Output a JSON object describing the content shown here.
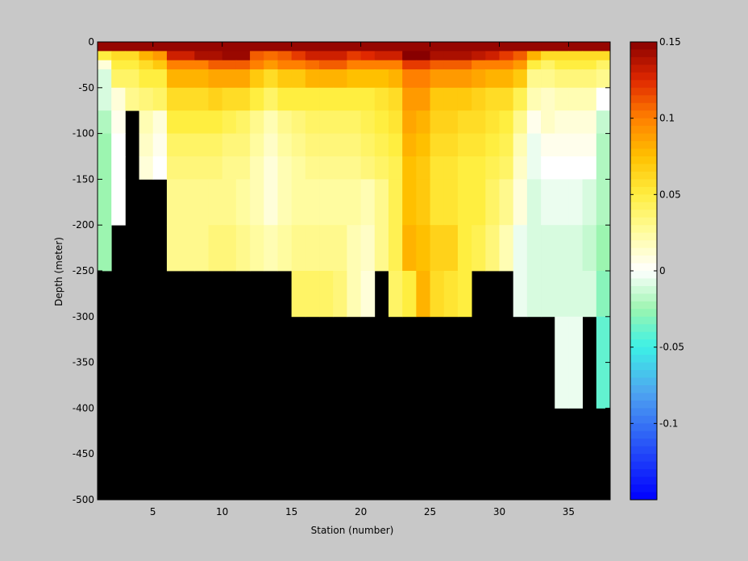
{
  "chart_data": [
    {
      "type": "heatmap",
      "title": "",
      "xlabel": "Station (number)",
      "ylabel": "Depth (meter)",
      "xlim": [
        1,
        38
      ],
      "ylim": [
        -500,
        0
      ],
      "xticks": [
        5,
        10,
        15,
        20,
        25,
        30,
        35
      ],
      "yticks": [
        0,
        -50,
        -100,
        -150,
        -200,
        -250,
        -300,
        -350,
        -400,
        -450,
        -500
      ],
      "background_color": "#000000",
      "y_direction": "normal",
      "stations": [
        1,
        2,
        3,
        4,
        5,
        6,
        7,
        8,
        9,
        10,
        11,
        12,
        13,
        14,
        15,
        16,
        17,
        18,
        19,
        20,
        21,
        22,
        23,
        24,
        25,
        26,
        27,
        28,
        29,
        30,
        31,
        32,
        33,
        34,
        35,
        36,
        37,
        38
      ],
      "depth_rows": [
        0,
        -10,
        -20,
        -30,
        -50,
        -75,
        -100,
        -125,
        -150,
        -200,
        -250,
        -300,
        -400
      ],
      "values": [
        [
          0.146,
          0.146,
          0.146,
          0.146,
          0.146,
          0.146,
          0.146,
          0.146,
          0.146,
          0.146,
          0.146,
          0.146,
          0.146,
          0.146,
          0.146,
          0.146,
          0.146,
          0.146,
          0.146,
          0.146,
          0.146,
          0.146,
          0.146,
          0.146,
          0.146,
          0.146,
          0.146,
          0.146,
          0.146,
          0.146,
          0.146,
          0.146,
          0.146,
          0.146,
          0.146,
          0.146,
          0.146
        ],
        [
          0.05,
          0.06,
          0.06,
          0.08,
          0.09,
          0.13,
          0.13,
          0.14,
          0.14,
          0.145,
          0.145,
          0.11,
          0.105,
          0.11,
          0.12,
          0.13,
          0.13,
          0.13,
          0.12,
          0.125,
          0.13,
          0.13,
          0.15,
          0.15,
          0.14,
          0.14,
          0.14,
          0.135,
          0.13,
          0.12,
          0.11,
          0.08,
          0.06,
          0.06,
          0.06,
          0.06,
          0.06
        ],
        [
          0.01,
          0.05,
          0.05,
          0.06,
          0.07,
          0.1,
          0.1,
          0.1,
          0.11,
          0.11,
          0.11,
          0.1,
          0.09,
          0.1,
          0.1,
          0.105,
          0.11,
          0.11,
          0.1,
          0.1,
          0.1,
          0.1,
          0.12,
          0.12,
          0.11,
          0.11,
          0.11,
          0.1,
          0.1,
          0.1,
          0.09,
          0.05,
          0.04,
          0.05,
          0.05,
          0.05,
          0.04
        ],
        [
          -0.01,
          0.04,
          0.04,
          0.05,
          0.05,
          0.08,
          0.08,
          0.08,
          0.085,
          0.085,
          0.085,
          0.07,
          0.06,
          0.07,
          0.07,
          0.08,
          0.08,
          0.08,
          0.075,
          0.075,
          0.075,
          0.08,
          0.1,
          0.1,
          0.09,
          0.09,
          0.09,
          0.085,
          0.08,
          0.08,
          0.07,
          0.03,
          0.03,
          0.035,
          0.035,
          0.035,
          0.03
        ],
        [
          -0.01,
          0.01,
          0.03,
          0.035,
          0.04,
          0.06,
          0.06,
          0.06,
          0.065,
          0.06,
          0.06,
          0.05,
          0.04,
          0.05,
          0.05,
          0.05,
          0.05,
          0.05,
          0.05,
          0.05,
          0.055,
          0.06,
          0.09,
          0.09,
          0.07,
          0.07,
          0.07,
          0.065,
          0.06,
          0.06,
          0.045,
          0.02,
          0.015,
          0.02,
          0.02,
          0.02,
          0.0
        ],
        [
          -0.02,
          0.005,
          null,
          0.02,
          0.01,
          0.05,
          0.05,
          0.05,
          0.05,
          0.045,
          0.04,
          0.03,
          0.02,
          0.03,
          0.035,
          0.04,
          0.04,
          0.04,
          0.04,
          0.045,
          0.05,
          0.055,
          0.085,
          0.08,
          0.065,
          0.065,
          0.06,
          0.06,
          0.055,
          0.05,
          0.03,
          0.005,
          0.015,
          0.01,
          0.01,
          0.01,
          -0.015
        ],
        [
          -0.025,
          0.0,
          null,
          0.015,
          0.005,
          0.04,
          0.04,
          0.04,
          0.04,
          0.035,
          0.035,
          0.025,
          0.015,
          0.025,
          0.03,
          0.035,
          0.035,
          0.035,
          0.035,
          0.04,
          0.045,
          0.05,
          0.08,
          0.075,
          0.06,
          0.06,
          0.055,
          0.055,
          0.05,
          0.045,
          0.02,
          -0.005,
          0.005,
          0.005,
          0.005,
          0.005,
          -0.02
        ],
        [
          -0.025,
          0.0,
          null,
          0.01,
          0.0,
          0.035,
          0.035,
          0.035,
          0.035,
          0.03,
          0.03,
          0.02,
          0.01,
          0.02,
          0.025,
          0.03,
          0.03,
          0.03,
          0.03,
          0.035,
          0.04,
          0.045,
          0.075,
          0.07,
          0.055,
          0.055,
          0.05,
          0.05,
          0.045,
          0.04,
          0.015,
          -0.005,
          0.0,
          0.0,
          0.0,
          0.0,
          -0.02
        ],
        [
          -0.025,
          0.0,
          null,
          null,
          null,
          0.03,
          0.03,
          0.03,
          0.03,
          0.03,
          0.025,
          0.02,
          0.01,
          0.02,
          0.025,
          0.025,
          0.025,
          0.025,
          0.025,
          0.02,
          0.03,
          0.045,
          0.075,
          0.07,
          0.055,
          0.055,
          0.05,
          0.05,
          0.04,
          0.03,
          0.01,
          -0.01,
          -0.005,
          -0.005,
          -0.005,
          -0.01,
          -0.02
        ],
        [
          -0.025,
          null,
          null,
          null,
          null,
          0.03,
          0.03,
          0.03,
          0.035,
          0.035,
          0.03,
          0.025,
          0.02,
          0.025,
          0.03,
          0.03,
          0.03,
          0.03,
          0.02,
          0.015,
          0.03,
          0.045,
          0.08,
          0.075,
          0.065,
          0.065,
          0.05,
          0.045,
          0.035,
          0.02,
          -0.005,
          -0.01,
          -0.01,
          -0.01,
          -0.01,
          -0.015,
          -0.025
        ],
        [
          null,
          null,
          null,
          null,
          null,
          null,
          null,
          null,
          null,
          null,
          null,
          null,
          null,
          null,
          0.04,
          0.04,
          0.04,
          0.035,
          0.02,
          0.01,
          null,
          0.04,
          0.05,
          0.08,
          0.06,
          0.055,
          0.05,
          null,
          null,
          null,
          -0.005,
          -0.01,
          -0.01,
          -0.01,
          -0.01,
          -0.01,
          -0.03
        ],
        [
          null,
          null,
          null,
          null,
          null,
          null,
          null,
          null,
          null,
          null,
          null,
          null,
          null,
          null,
          null,
          null,
          null,
          null,
          null,
          null,
          null,
          null,
          null,
          null,
          null,
          null,
          null,
          null,
          null,
          null,
          null,
          null,
          null,
          -0.005,
          -0.005,
          null,
          -0.04
        ]
      ],
      "colorbar": {
        "min": -0.15,
        "max": 0.15,
        "ticks": [
          0.15,
          0.1,
          0.05,
          0,
          -0.05,
          -0.1
        ],
        "tick_labels": [
          "0.15",
          "0.1",
          "0.05",
          "0",
          "-0.05",
          "-0.1"
        ],
        "colormap": [
          [
            -0.15,
            "#0000ff"
          ],
          [
            -0.08,
            "#4ea4f0"
          ],
          [
            -0.05,
            "#3cf0e6"
          ],
          [
            -0.025,
            "#9cf5b0"
          ],
          [
            0.0,
            "#ffffff"
          ],
          [
            0.025,
            "#fffca0"
          ],
          [
            0.05,
            "#ffee40"
          ],
          [
            0.075,
            "#ffc000"
          ],
          [
            0.1,
            "#ff8000"
          ],
          [
            0.125,
            "#e02800"
          ],
          [
            0.15,
            "#880000"
          ]
        ]
      }
    }
  ]
}
